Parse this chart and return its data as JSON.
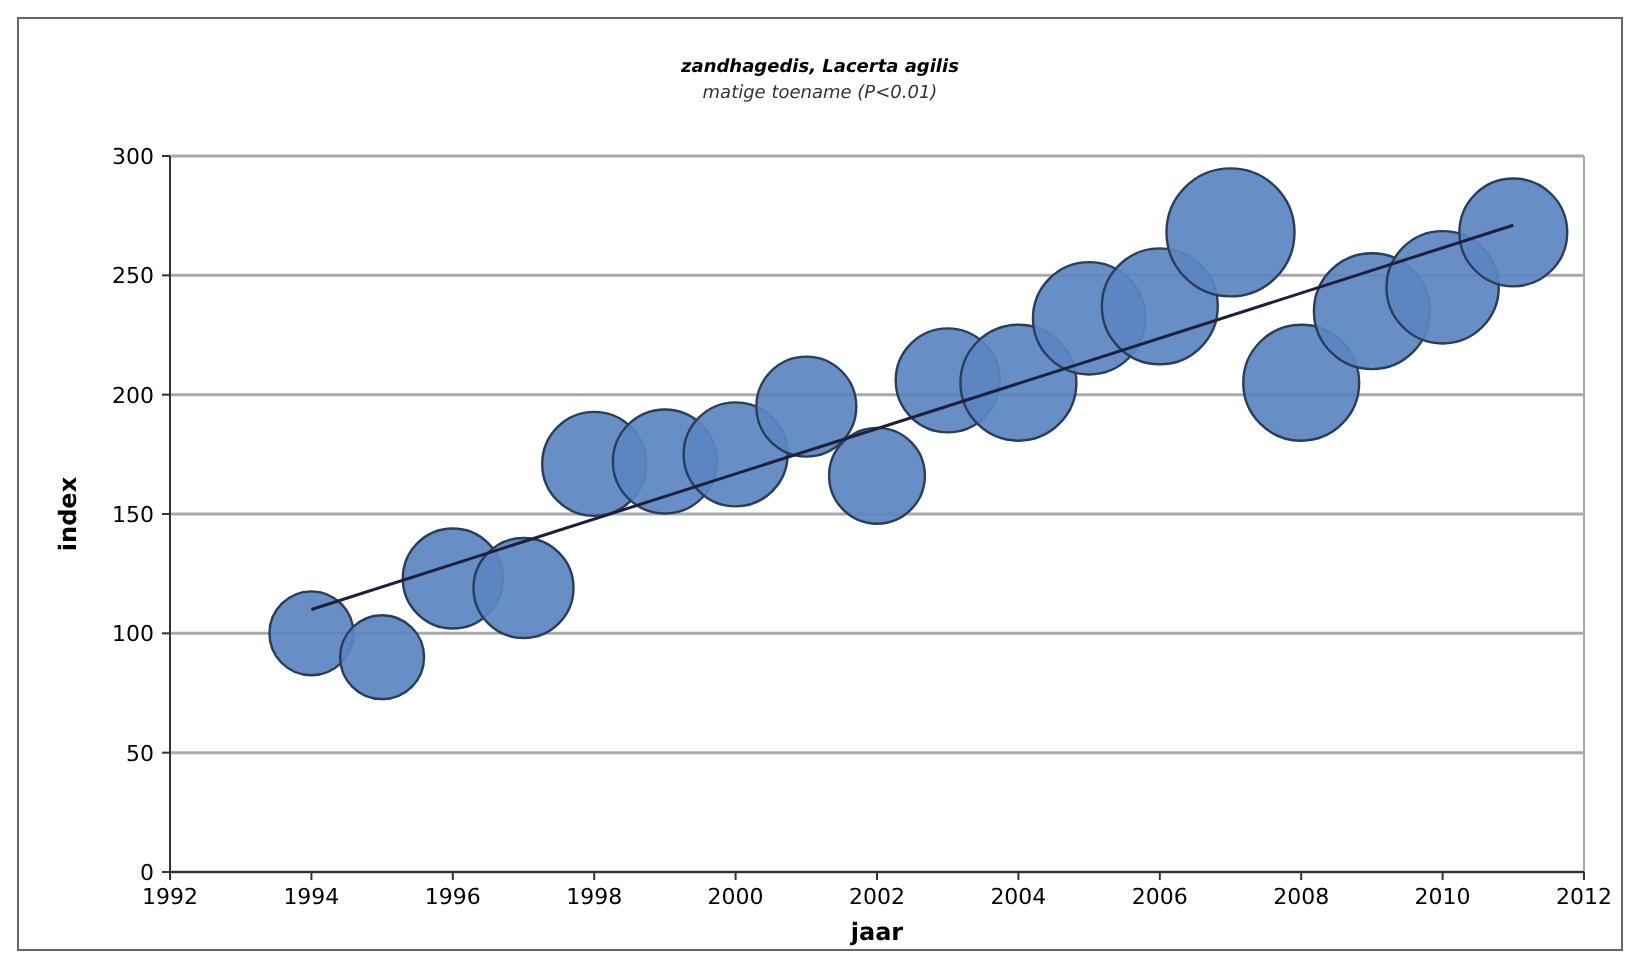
{
  "chart_data": {
    "type": "bubble",
    "title": "zandhagedis, Lacerta agilis",
    "subtitle": "matige toename (P<0.01)",
    "xlabel": "jaar",
    "ylabel": "index",
    "xlim": [
      1992,
      2012
    ],
    "xticks": [
      1992,
      1994,
      1996,
      1998,
      2000,
      2002,
      2004,
      2006,
      2008,
      2010,
      2012
    ],
    "ylim": [
      0,
      300
    ],
    "yticks": [
      0,
      50,
      100,
      150,
      200,
      250,
      300
    ],
    "grid": "y",
    "series": [
      {
        "color": "#5a86c0",
        "x": [
          1994,
          1995,
          1996,
          1997,
          1998,
          1999,
          2000,
          2001,
          2002,
          2003,
          2004,
          2005,
          2006,
          2007,
          2008,
          2009,
          2010,
          2011
        ],
        "values": [
          100,
          90,
          123,
          119,
          171,
          172,
          175,
          195,
          166,
          206,
          205,
          232,
          237,
          268,
          205,
          235,
          245,
          268
        ],
        "sizes": [
          0.43,
          0.43,
          0.61,
          0.61,
          0.66,
          0.66,
          0.66,
          0.61,
          0.56,
          0.66,
          0.82,
          0.77,
          0.82,
          1,
          0.82,
          0.82,
          0.77,
          0.71
        ]
      },
      {
        "type": "line",
        "color": "#1f1f3a",
        "x": [
          1994,
          2011
        ],
        "values": [
          110,
          271
        ]
      }
    ]
  }
}
